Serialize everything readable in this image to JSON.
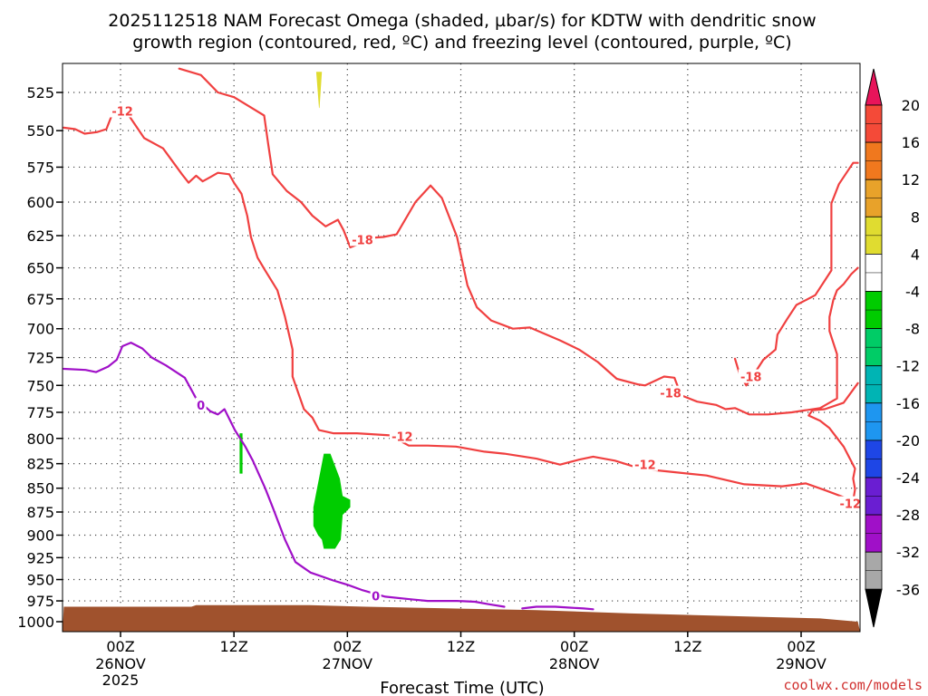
{
  "title": {
    "line1": "2025112518 NAM Forecast Omega (shaded, µbar/s) for KDTW with dendritic snow",
    "line2": "growth region (contoured, red, ºC) and freezing level (contoured, purple, ºC)"
  },
  "credit": "coolwx.com/models",
  "colors": {
    "dgz_contour": "#f04040",
    "freezing_contour": "#a010c8",
    "ground": "#a0522d",
    "shade_green": "#00cc00",
    "shade_yellow": "#e0dc30"
  },
  "chart_data": {
    "type": "heatmap",
    "xlabel": "Forecast Time (UTC)",
    "ylabel": "",
    "x_units": "hours since 2025-11-25 18Z",
    "xlim": [
      0,
      84
    ],
    "ylim": [
      1000,
      510
    ],
    "y_ticks": [
      525,
      550,
      575,
      600,
      625,
      650,
      675,
      700,
      725,
      750,
      775,
      800,
      825,
      850,
      875,
      900,
      925,
      950,
      975,
      1000
    ],
    "x_ticks": [
      {
        "x": 6,
        "label": "00Z",
        "sub": "26NOV",
        "sub2": "2025"
      },
      {
        "x": 18,
        "label": "12Z",
        "sub": "",
        "sub2": ""
      },
      {
        "x": 30,
        "label": "00Z",
        "sub": "27NOV",
        "sub2": ""
      },
      {
        "x": 42,
        "label": "12Z",
        "sub": "",
        "sub2": ""
      },
      {
        "x": 54,
        "label": "00Z",
        "sub": "28NOV",
        "sub2": ""
      },
      {
        "x": 66,
        "label": "12Z",
        "sub": "",
        "sub2": ""
      },
      {
        "x": 78,
        "label": "00Z",
        "sub": "29NOV",
        "sub2": ""
      }
    ],
    "grid": true,
    "colorbar": {
      "labels": [
        "20",
        "16",
        "12",
        "8",
        "4",
        "-4",
        "-8",
        "-12",
        "-16",
        "-20",
        "-24",
        "-28",
        "-32",
        "-36"
      ],
      "colors": [
        "#e8145a",
        "#f44a38",
        "#f0781e",
        "#e8a22a",
        "#e0dc30",
        "#ffffff",
        "#00cc00",
        "#00cc66",
        "#00b4b4",
        "#1e96f0",
        "#1e46e6",
        "#6a1ed2",
        "#a010c8",
        "#a8a8a8",
        "#000000"
      ]
    },
    "shaded_regions": [
      {
        "level": "-4 to -8",
        "color": "#00cc00",
        "points": [
          [
            26.4,
            870
          ],
          [
            27.5,
            815
          ],
          [
            28.2,
            815
          ],
          [
            29.2,
            840
          ],
          [
            29.5,
            858
          ],
          [
            30.3,
            862
          ],
          [
            30.3,
            870
          ],
          [
            29.5,
            878
          ],
          [
            29.3,
            905
          ],
          [
            28.7,
            915
          ],
          [
            27.5,
            915
          ],
          [
            27.3,
            905
          ],
          [
            26.9,
            900
          ],
          [
            26.4,
            890
          ]
        ]
      },
      {
        "level": "-4 to -8",
        "color": "#00cc00",
        "points": [
          [
            18.6,
            795
          ],
          [
            18.9,
            795
          ],
          [
            18.9,
            835
          ],
          [
            18.6,
            835
          ]
        ]
      },
      {
        "level": "4 to 8",
        "color": "#e0dc30",
        "points": [
          [
            26.7,
            512
          ],
          [
            27.3,
            512
          ],
          [
            27.05,
            535
          ],
          [
            27.0,
            535
          ]
        ]
      }
    ],
    "ground_profile": [
      [
        0,
        982
      ],
      [
        13.5,
        982
      ],
      [
        14,
        980
      ],
      [
        26,
        980
      ],
      [
        32,
        982
      ],
      [
        41,
        984
      ],
      [
        50,
        986
      ],
      [
        60,
        990
      ],
      [
        70,
        993
      ],
      [
        80,
        996
      ],
      [
        84,
        1000
      ]
    ],
    "series": [
      {
        "name": "-12",
        "color": "#f04040",
        "points": [
          [
            0,
            548
          ],
          [
            1.2,
            549
          ],
          [
            2.2,
            552
          ],
          [
            3.5,
            551
          ],
          [
            4.5,
            549
          ],
          [
            5.0,
            541
          ],
          [
            5.7,
            535
          ],
          [
            7.0,
            541
          ],
          [
            8.5,
            555
          ],
          [
            10.5,
            562
          ],
          [
            12.5,
            580
          ],
          [
            13.2,
            586
          ],
          [
            14.0,
            581
          ],
          [
            14.7,
            585
          ],
          [
            15.5,
            582
          ],
          [
            16.3,
            579
          ],
          [
            17.5,
            580
          ],
          [
            18.0,
            586
          ],
          [
            18.8,
            594
          ],
          [
            19.1,
            602
          ],
          [
            19.4,
            610
          ],
          [
            19.8,
            626
          ],
          [
            20.5,
            642
          ],
          [
            21.3,
            652
          ],
          [
            22.6,
            668
          ],
          [
            23.4,
            690
          ],
          [
            24.2,
            718
          ],
          [
            24.2,
            742
          ],
          [
            25.4,
            772
          ],
          [
            26.3,
            780
          ],
          [
            27.0,
            792
          ],
          [
            28.5,
            795
          ],
          [
            31.0,
            795
          ],
          [
            34.5,
            797
          ],
          [
            36.5,
            807
          ],
          [
            38.5,
            807
          ],
          [
            41.5,
            808
          ],
          [
            44.5,
            813
          ],
          [
            46.6,
            815
          ],
          [
            50.0,
            820
          ],
          [
            52.5,
            826
          ],
          [
            54.5,
            821
          ],
          [
            56.0,
            818
          ],
          [
            58.3,
            822
          ],
          [
            61.0,
            830
          ],
          [
            64.0,
            833
          ],
          [
            68.0,
            837
          ],
          [
            72.0,
            846
          ],
          [
            74.0,
            847
          ],
          [
            76.0,
            848
          ],
          [
            78.5,
            845
          ],
          [
            80.5,
            852
          ],
          [
            83.5,
            863
          ],
          [
            83.7,
            851
          ],
          [
            83.5,
            840
          ],
          [
            83.7,
            830
          ],
          [
            82.5,
            808
          ],
          [
            81.0,
            790
          ],
          [
            80.0,
            783
          ],
          [
            78.8,
            778
          ],
          [
            79.2,
            773
          ],
          [
            80.5,
            772
          ],
          [
            82.5,
            766
          ],
          [
            84.0,
            748
          ]
        ]
      },
      {
        "name": "-18",
        "color": "#f04040",
        "points": [
          [
            12.2,
            510
          ],
          [
            14.5,
            514
          ],
          [
            16.3,
            525
          ],
          [
            18.0,
            528
          ],
          [
            21.2,
            540
          ],
          [
            21.6,
            558
          ],
          [
            22.1,
            580
          ],
          [
            23.6,
            592
          ],
          [
            25.1,
            600
          ],
          [
            26.3,
            610
          ],
          [
            27.7,
            618
          ],
          [
            29.0,
            613
          ],
          [
            29.6,
            621
          ],
          [
            30.3,
            634
          ],
          [
            31.0,
            632
          ],
          [
            32.0,
            627
          ],
          [
            33.8,
            626
          ],
          [
            35.2,
            624
          ],
          [
            37.2,
            600
          ],
          [
            38.8,
            588
          ],
          [
            40.0,
            597
          ],
          [
            41.6,
            626
          ],
          [
            42.7,
            664
          ],
          [
            43.7,
            682
          ],
          [
            45.2,
            693
          ],
          [
            47.5,
            700
          ],
          [
            49.3,
            699
          ],
          [
            52.5,
            710
          ],
          [
            54.5,
            718
          ],
          [
            56.5,
            729
          ],
          [
            58.5,
            744
          ],
          [
            60.7,
            749
          ],
          [
            61.5,
            750
          ],
          [
            63.5,
            742
          ],
          [
            64.6,
            743
          ],
          [
            65.3,
            759
          ],
          [
            67.0,
            765
          ],
          [
            69.0,
            768
          ],
          [
            70.0,
            772
          ],
          [
            71.0,
            771
          ],
          [
            72.5,
            777
          ],
          [
            74.5,
            777
          ],
          [
            77.0,
            775
          ],
          [
            80.0,
            771
          ],
          [
            81.8,
            762
          ],
          [
            81.8,
            722
          ],
          [
            81.0,
            702
          ],
          [
            81.0,
            690
          ],
          [
            81.4,
            676
          ],
          [
            81.8,
            668
          ],
          [
            82.5,
            663
          ],
          [
            83.3,
            655
          ],
          [
            84.0,
            650
          ]
        ]
      },
      {
        "name": "-18",
        "color": "#f04040",
        "points": [
          [
            84.0,
            572
          ],
          [
            83.5,
            572
          ],
          [
            82.0,
            587
          ],
          [
            81.2,
            601
          ],
          [
            81.2,
            652
          ],
          [
            79.5,
            672
          ],
          [
            77.5,
            680
          ],
          [
            76.5,
            692
          ],
          [
            75.5,
            705
          ],
          [
            75.3,
            718
          ],
          [
            74.0,
            727
          ],
          [
            73.0,
            740
          ],
          [
            72.2,
            750
          ],
          [
            71.5,
            740
          ],
          [
            71.0,
            726
          ]
        ]
      },
      {
        "name": "0",
        "color": "#a010c8",
        "points": [
          [
            0,
            735
          ],
          [
            2.3,
            736
          ],
          [
            3.4,
            738
          ],
          [
            4.7,
            733
          ],
          [
            5.6,
            727
          ],
          [
            6.2,
            715
          ],
          [
            7.1,
            712
          ],
          [
            8.3,
            717
          ],
          [
            9.3,
            725
          ],
          [
            10.8,
            732
          ],
          [
            12.8,
            743
          ],
          [
            14.0,
            762
          ],
          [
            15.5,
            774
          ],
          [
            16.3,
            777
          ],
          [
            17.0,
            772
          ],
          [
            18.1,
            792
          ],
          [
            19.2,
            808
          ],
          [
            20.0,
            822
          ],
          [
            20.7,
            837
          ],
          [
            21.3,
            850
          ],
          [
            22.1,
            870
          ],
          [
            23.4,
            905
          ],
          [
            24.5,
            930
          ],
          [
            26.1,
            942
          ],
          [
            28.5,
            951
          ],
          [
            30.0,
            956
          ],
          [
            31.5,
            962
          ],
          [
            34.0,
            970
          ],
          [
            36.6,
            973
          ],
          [
            38.5,
            975
          ],
          [
            41.6,
            975
          ],
          [
            43.5,
            976
          ],
          [
            45.0,
            979
          ],
          [
            46.6,
            982
          ]
        ]
      },
      {
        "name": "0",
        "color": "#a010c8",
        "points": [
          [
            48.5,
            984
          ],
          [
            50.0,
            982
          ],
          [
            52.0,
            982
          ],
          [
            53.5,
            983
          ],
          [
            55.0,
            984
          ],
          [
            56.0,
            985
          ]
        ]
      }
    ],
    "contour_labels": [
      {
        "text": "-12",
        "x": 6.2,
        "y": 537,
        "color": "#f04040"
      },
      {
        "text": "-18",
        "x": 31.6,
        "y": 628,
        "color": "#f04040"
      },
      {
        "text": "-12",
        "x": 35.8,
        "y": 798,
        "color": "#f04040"
      },
      {
        "text": "-18",
        "x": 72.7,
        "y": 742,
        "color": "#f04040"
      },
      {
        "text": "-18",
        "x": 64.2,
        "y": 757,
        "color": "#f04040"
      },
      {
        "text": "-12",
        "x": 61.5,
        "y": 826,
        "color": "#f04040"
      },
      {
        "text": "-12",
        "x": 83.2,
        "y": 866,
        "color": "#f04040"
      },
      {
        "text": "0",
        "x": 14.5,
        "y": 768,
        "color": "#a010c8"
      },
      {
        "text": "0",
        "x": 33.0,
        "y": 969,
        "color": "#a010c8"
      }
    ]
  }
}
